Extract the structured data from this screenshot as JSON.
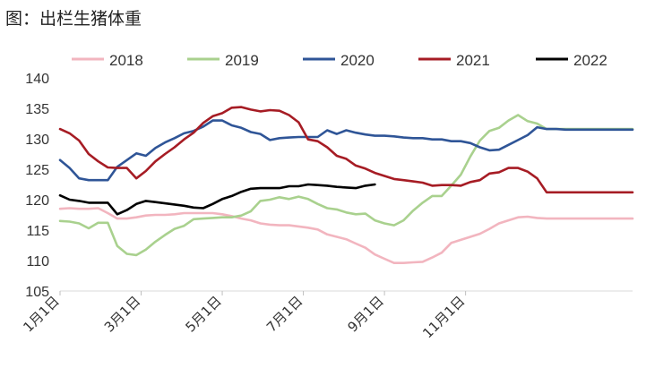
{
  "title": "图：出栏生猪体重",
  "chart_data": {
    "type": "line",
    "title": "图：出栏生猪体重",
    "xlabel": "",
    "ylabel": "",
    "ylim": [
      105,
      140
    ],
    "yticks": [
      "105",
      "110",
      "115",
      "120",
      "125",
      "130",
      "135",
      "140"
    ],
    "xticks": [
      "1月1日",
      "3月1日",
      "5月1日",
      "7月1日",
      "9月1日",
      "11月1日"
    ],
    "grid": false,
    "legend": "top",
    "series": [
      {
        "name": "2018",
        "color": "#f2b5bf",
        "x": [
          1,
          2,
          3,
          4,
          5,
          6,
          7,
          8,
          9,
          10,
          11,
          12,
          13,
          14,
          15,
          16,
          17,
          18,
          19,
          20,
          21,
          22,
          23,
          24,
          25,
          26,
          27,
          28,
          29,
          30,
          31,
          32,
          33,
          34,
          35,
          36,
          37,
          38,
          39,
          40,
          41,
          42,
          43,
          44,
          45,
          46,
          47,
          48,
          49,
          50,
          51,
          52,
          53,
          54,
          55,
          56,
          57,
          58,
          59,
          60,
          61
        ],
        "values": [
          118.5,
          118.6,
          118.5,
          118.5,
          118.6,
          117.8,
          116.9,
          116.9,
          117.1,
          117.4,
          117.5,
          117.5,
          117.6,
          117.8,
          117.8,
          117.8,
          117.8,
          117.6,
          117.3,
          116.9,
          116.6,
          116.1,
          115.9,
          115.8,
          115.8,
          115.6,
          115.4,
          115.1,
          114.3,
          113.9,
          113.5,
          112.8,
          112.1,
          111.0,
          110.3,
          109.6,
          109.6,
          109.7,
          109.8,
          110.5,
          111.3,
          112.9,
          113.4,
          113.9,
          114.4,
          115.2,
          116.1,
          116.6,
          117.1,
          117.2,
          117.0,
          116.9,
          116.9,
          116.9,
          116.9,
          116.9,
          116.9,
          116.9,
          116.9,
          116.9,
          116.9
        ]
      },
      {
        "name": "2019",
        "color": "#a9d18e",
        "x": [
          1,
          2,
          3,
          4,
          5,
          6,
          7,
          8,
          9,
          10,
          11,
          12,
          13,
          14,
          15,
          16,
          17,
          18,
          19,
          20,
          21,
          22,
          23,
          24,
          25,
          26,
          27,
          28,
          29,
          30,
          31,
          32,
          33,
          34,
          35,
          36,
          37,
          38,
          39,
          40,
          41,
          42,
          43,
          44,
          45,
          46,
          47,
          48,
          49,
          50,
          51,
          52,
          53,
          54,
          55,
          56,
          57,
          58,
          59,
          60,
          61
        ],
        "values": [
          116.5,
          116.4,
          116.1,
          115.3,
          116.2,
          116.2,
          112.4,
          111.1,
          110.9,
          111.8,
          113.1,
          114.2,
          115.2,
          115.7,
          116.8,
          116.9,
          117.0,
          117.1,
          117.1,
          117.4,
          118.1,
          119.8,
          120.0,
          120.4,
          120.1,
          120.5,
          120.1,
          119.3,
          118.6,
          118.4,
          117.9,
          117.6,
          117.7,
          116.6,
          116.1,
          115.8,
          116.6,
          118.2,
          119.5,
          120.6,
          120.6,
          122.3,
          124.1,
          127.1,
          129.7,
          131.3,
          131.8,
          133.0,
          133.9,
          132.9,
          132.5,
          131.6,
          131.6,
          131.6,
          131.6,
          131.6,
          131.6,
          131.6,
          131.6,
          131.6,
          131.6
        ]
      },
      {
        "name": "2020",
        "color": "#2f5597",
        "x": [
          1,
          2,
          3,
          4,
          5,
          6,
          7,
          8,
          9,
          10,
          11,
          12,
          13,
          14,
          15,
          16,
          17,
          18,
          19,
          20,
          21,
          22,
          23,
          24,
          25,
          26,
          27,
          28,
          29,
          30,
          31,
          32,
          33,
          34,
          35,
          36,
          37,
          38,
          39,
          40,
          41,
          42,
          43,
          44,
          45,
          46,
          47,
          48,
          49,
          50,
          51,
          52,
          53,
          54,
          55,
          56,
          57,
          58,
          59,
          60,
          61
        ],
        "values": [
          126.5,
          125.2,
          123.5,
          123.2,
          123.2,
          123.2,
          125.4,
          126.5,
          127.6,
          127.2,
          128.5,
          129.4,
          130.1,
          130.9,
          131.3,
          132.0,
          133.0,
          133.0,
          132.2,
          131.8,
          131.1,
          130.8,
          129.8,
          130.1,
          130.2,
          130.3,
          130.3,
          130.3,
          131.4,
          130.8,
          131.4,
          131.0,
          130.7,
          130.5,
          130.5,
          130.4,
          130.2,
          130.1,
          130.1,
          129.9,
          129.9,
          129.6,
          129.6,
          129.3,
          128.6,
          128.1,
          128.2,
          129.0,
          129.8,
          130.6,
          131.9,
          131.6,
          131.6,
          131.5,
          131.5,
          131.5,
          131.5,
          131.5,
          131.5,
          131.5,
          131.5
        ]
      },
      {
        "name": "2021",
        "color": "#a61c24",
        "x": [
          1,
          2,
          3,
          4,
          5,
          6,
          7,
          8,
          9,
          10,
          11,
          12,
          13,
          14,
          15,
          16,
          17,
          18,
          19,
          20,
          21,
          22,
          23,
          24,
          25,
          26,
          27,
          28,
          29,
          30,
          31,
          32,
          33,
          34,
          35,
          36,
          37,
          38,
          39,
          40,
          41,
          42,
          43,
          44,
          45,
          46,
          47,
          48,
          49,
          50,
          51,
          52,
          53,
          54,
          55,
          56,
          57,
          58,
          59,
          60,
          61
        ],
        "values": [
          131.6,
          130.9,
          129.7,
          127.5,
          126.3,
          125.3,
          125.2,
          125.2,
          123.5,
          124.7,
          126.3,
          127.5,
          128.6,
          129.9,
          131.0,
          132.6,
          133.7,
          134.2,
          135.1,
          135.2,
          134.8,
          134.5,
          134.7,
          134.6,
          133.9,
          132.7,
          129.9,
          129.6,
          128.6,
          127.2,
          126.7,
          125.6,
          125.1,
          124.4,
          123.9,
          123.4,
          123.2,
          123.0,
          122.8,
          122.3,
          122.4,
          122.4,
          122.3,
          122.9,
          123.2,
          124.3,
          124.5,
          125.2,
          125.2,
          124.6,
          123.5,
          121.2,
          121.2,
          121.2,
          121.2,
          121.2,
          121.2,
          121.2,
          121.2,
          121.2,
          121.2
        ]
      },
      {
        "name": "2022",
        "color": "#000000",
        "x": [
          1,
          2,
          3,
          4,
          5,
          6,
          7,
          8,
          9,
          10,
          11,
          12,
          13,
          14,
          15,
          16,
          17,
          18,
          19,
          20,
          21,
          22,
          23,
          24,
          25,
          26,
          27,
          28,
          29,
          30,
          31,
          32,
          33,
          34
        ],
        "values": [
          120.7,
          120.0,
          119.8,
          119.5,
          119.5,
          119.5,
          117.6,
          118.3,
          119.3,
          119.8,
          119.6,
          119.4,
          119.2,
          119.0,
          118.7,
          118.6,
          119.3,
          120.1,
          120.6,
          121.3,
          121.8,
          121.9,
          121.9,
          121.9,
          122.2,
          122.2,
          122.5,
          122.4,
          122.3,
          122.1,
          122.0,
          121.9,
          122.3,
          122.5
        ]
      }
    ]
  }
}
